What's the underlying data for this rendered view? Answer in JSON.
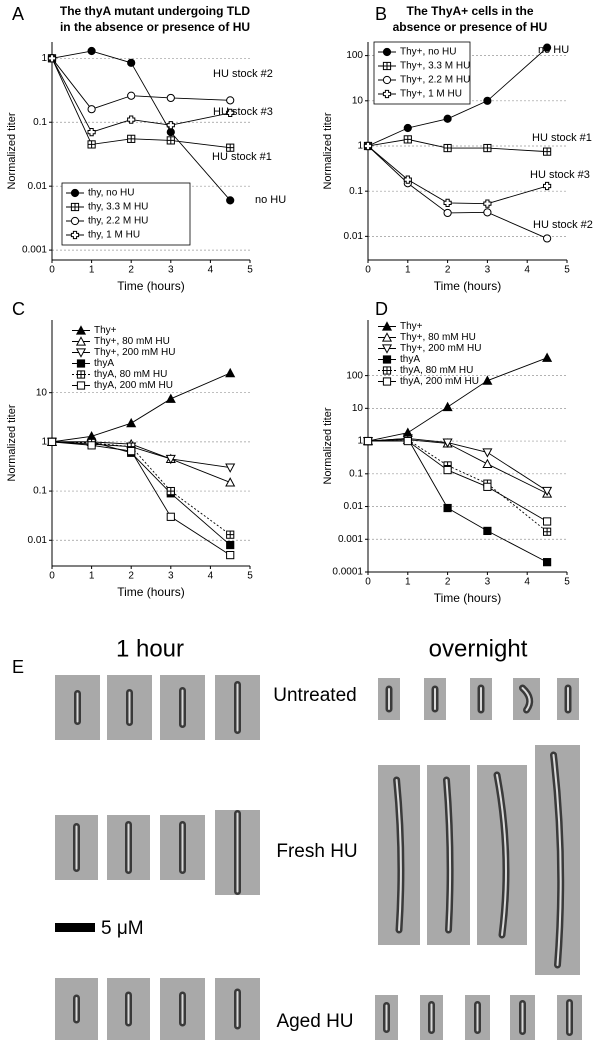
{
  "chart_data": [
    {
      "type": "line",
      "panel": "A",
      "title": [
        "The thyA mutant undergoing TLD",
        "in the absence or presence of HU"
      ],
      "x_label": "Time (hours)",
      "y_label": "Normalized titer",
      "yscale": "log",
      "grid": true,
      "legend_frame": true,
      "x": [
        0,
        1,
        2,
        3,
        4.5
      ],
      "xlim": [
        0,
        5
      ],
      "xticks": [
        0,
        1,
        2,
        3,
        4,
        5
      ],
      "ylim": [
        0.0007,
        1.8
      ],
      "yticks": [
        0.001,
        0.01,
        0.1,
        1
      ],
      "series": [
        {
          "name": "thy, no HU",
          "color": "#000000",
          "marker": "circle-filled",
          "values": [
            1,
            1.3,
            0.85,
            0.07,
            0.006
          ]
        },
        {
          "name": "thy, 3.3 M HU",
          "color": "#000000",
          "marker": "square-plus",
          "values": [
            1,
            0.045,
            0.055,
            0.052,
            0.04
          ]
        },
        {
          "name": "thy, 2.2 M HU",
          "color": "#000000",
          "marker": "circle-open",
          "values": [
            1,
            0.16,
            0.26,
            0.24,
            0.22
          ]
        },
        {
          "name": "thy, 1 M HU",
          "color": "#000000",
          "marker": "cross",
          "values": [
            1,
            0.07,
            0.11,
            0.09,
            0.14
          ]
        }
      ],
      "annotations": [
        "HU stock #2",
        "HU stock #3",
        "HU stock #1",
        "no HU"
      ]
    },
    {
      "type": "line",
      "panel": "B",
      "title": [
        "The ThyA+ cells in the",
        "absence or presence of HU"
      ],
      "x_label": "Time (hours)",
      "y_label": "Normalized titer",
      "yscale": "log",
      "grid": true,
      "legend_frame": true,
      "x": [
        0,
        1,
        2,
        3,
        4.5
      ],
      "xlim": [
        0,
        5
      ],
      "xticks": [
        0,
        1,
        2,
        3,
        4,
        5
      ],
      "ylim": [
        0.003,
        200
      ],
      "yticks": [
        0.01,
        0.1,
        1,
        10,
        100
      ],
      "series": [
        {
          "name": "Thy+, no HU",
          "color": "#000000",
          "marker": "circle-filled",
          "values": [
            1,
            2.5,
            4,
            10,
            150
          ]
        },
        {
          "name": "Thy+, 3.3 M HU",
          "color": "#000000",
          "marker": "square-plus",
          "values": [
            1,
            1.4,
            0.9,
            0.9,
            0.75
          ]
        },
        {
          "name": "Thy+, 2.2 M HU",
          "color": "#000000",
          "marker": "circle-open",
          "values": [
            1,
            0.15,
            0.033,
            0.034,
            0.009
          ]
        },
        {
          "name": "Thy+, 1 M HU",
          "color": "#000000",
          "marker": "cross",
          "values": [
            1,
            0.18,
            0.055,
            0.053,
            0.13
          ]
        }
      ],
      "annotations": [
        "no HU",
        "HU stock #1",
        "HU stock #3",
        "HU stock #2"
      ]
    },
    {
      "type": "line",
      "panel": "C",
      "x_label": "Time (hours)",
      "y_label": "Normalized titer",
      "yscale": "log",
      "grid": true,
      "legend_frame": false,
      "x": [
        0,
        1,
        2,
        3,
        4.5
      ],
      "xlim": [
        0,
        5
      ],
      "xticks": [
        0,
        1,
        2,
        3,
        4,
        5
      ],
      "ylim": [
        0.003,
        300
      ],
      "yticks": [
        0.01,
        0.1,
        1,
        10
      ],
      "series": [
        {
          "name": "Thy+",
          "color": "#000000",
          "marker": "triangle-filled",
          "values": [
            1,
            1.3,
            2.4,
            7.5,
            25
          ]
        },
        {
          "name": "Thy+,  80 mM HU",
          "color": "#000000",
          "marker": "triangle-open",
          "values": [
            1,
            1.0,
            0.9,
            0.45,
            0.15
          ]
        },
        {
          "name": "Thy+,  200 mM HU",
          "color": "#000000",
          "marker": "triangle-down",
          "values": [
            1,
            0.9,
            0.8,
            0.45,
            0.3
          ]
        },
        {
          "name": "thyA",
          "color": "#000000",
          "marker": "square-filled",
          "values": [
            1,
            1.0,
            0.6,
            0.09,
            0.008
          ]
        },
        {
          "name": "thyA, 80 mM HU",
          "color": "#000000",
          "marker": "square-plus",
          "dash": "2,2",
          "values": [
            1,
            0.95,
            0.8,
            0.1,
            0.013
          ]
        },
        {
          "name": "thyA, 200 mM HU",
          "color": "#000000",
          "marker": "square-open",
          "values": [
            1,
            0.85,
            0.65,
            0.03,
            0.005
          ]
        }
      ]
    },
    {
      "type": "line",
      "panel": "D",
      "x_label": "Time (hours)",
      "y_label": "Normalized titer",
      "yscale": "log",
      "grid": true,
      "legend_frame": false,
      "x": [
        0,
        1,
        2,
        3,
        4.5
      ],
      "xlim": [
        0,
        5
      ],
      "xticks": [
        0,
        1,
        2,
        3,
        4,
        5
      ],
      "ylim": [
        0.0001,
        5000
      ],
      "yticks": [
        0.0001,
        0.001,
        0.01,
        0.1,
        1,
        10,
        100
      ],
      "series": [
        {
          "name": "Thy+",
          "color": "#000000",
          "marker": "triangle-filled",
          "values": [
            1,
            1.8,
            11,
            70,
            350
          ]
        },
        {
          "name": "Thy+,  80 mM HU",
          "color": "#000000",
          "marker": "triangle-open",
          "values": [
            1,
            1.1,
            0.85,
            0.2,
            0.025
          ]
        },
        {
          "name": "Thy+, 200 mM HU",
          "color": "#000000",
          "marker": "triangle-down",
          "values": [
            1,
            1.2,
            0.9,
            0.45,
            0.03
          ]
        },
        {
          "name": "thyA",
          "color": "#000000",
          "marker": "square-filled",
          "values": [
            1,
            1.2,
            0.009,
            0.0018,
            0.0002
          ]
        },
        {
          "name": "thyA, 80 mM HU",
          "color": "#000000",
          "marker": "square-plus",
          "dash": "2,2",
          "values": [
            1,
            1.1,
            0.18,
            0.05,
            0.0017
          ]
        },
        {
          "name": "thyA, 200 mM HU",
          "color": "#000000",
          "marker": "square-open",
          "values": [
            1,
            1.0,
            0.13,
            0.04,
            0.0035
          ]
        }
      ]
    }
  ],
  "panel_e": {
    "label": "E",
    "columns": [
      "1 hour",
      "overnight"
    ],
    "rows": [
      "Untreated",
      "Fresh HU",
      "Aged HU"
    ],
    "scale_bar": "5 μM"
  }
}
